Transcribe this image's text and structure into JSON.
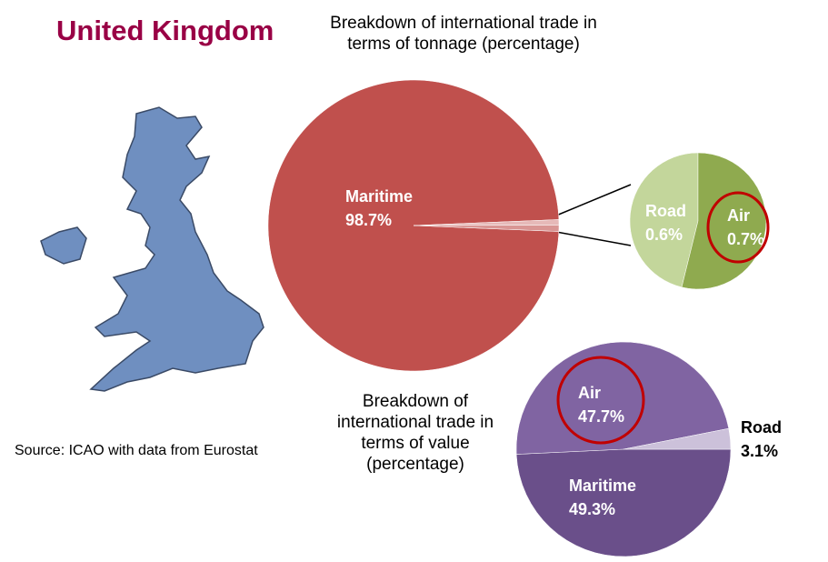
{
  "title": "United Kingdom",
  "source": "Source: ICAO with data from Eurostat",
  "chart_data": [
    {
      "type": "pie_of_pie",
      "title": "Breakdown of international trade in terms of tonnage (percentage)",
      "categories": [
        "Maritime",
        "Road",
        "Air"
      ],
      "values": [
        98.7,
        0.6,
        0.7
      ],
      "value_labels": [
        "98.7%",
        "0.6%",
        "0.7%"
      ],
      "colors": [
        "#c0504d",
        "#e6b9b8",
        "#d99694"
      ],
      "secondary_colors": [
        "#c3d69b",
        "#8faa4f"
      ]
    },
    {
      "type": "pie",
      "title": "Breakdown of international trade in terms of value (percentage)",
      "categories": [
        "Maritime",
        "Air",
        "Road"
      ],
      "values": [
        49.3,
        47.7,
        3.1
      ],
      "value_labels": [
        "49.3%",
        "47.7%",
        "3.1%"
      ],
      "colors": [
        "#6a4f8a",
        "#8064a2",
        "#ccc1da"
      ]
    }
  ]
}
